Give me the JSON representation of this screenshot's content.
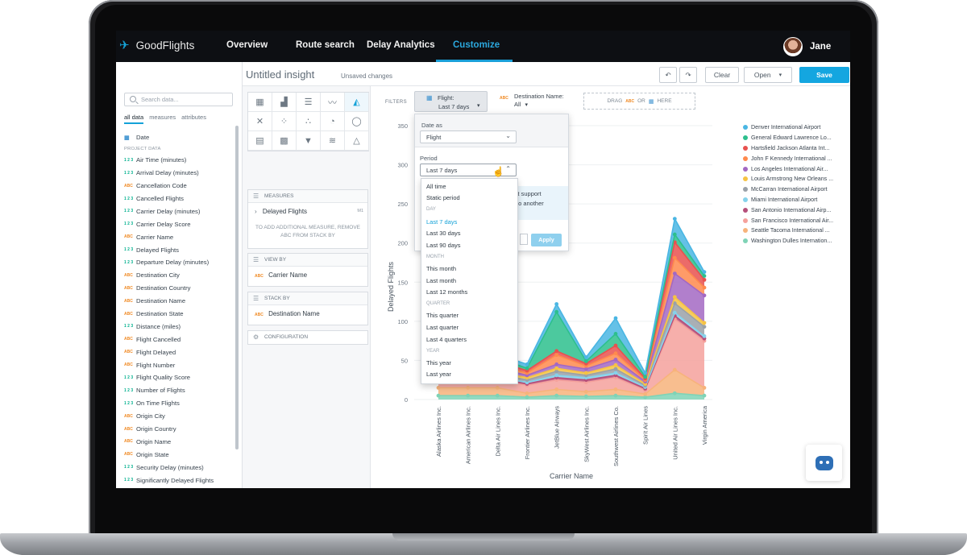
{
  "brand": {
    "name": "GoodFlights"
  },
  "nav": {
    "items": [
      {
        "label": "Overview"
      },
      {
        "label": "Route search"
      },
      {
        "label": "Delay Analytics"
      },
      {
        "label": "Customize",
        "active": true
      }
    ],
    "user": "Jane"
  },
  "left": {
    "search_placeholder": "Search data...",
    "tabs": [
      "all data",
      "measures",
      "attributes"
    ],
    "date_item": "Date",
    "section": "PROJECT DATA",
    "items": [
      {
        "tag": "1 2 3",
        "type": "num",
        "label": "Air Time (minutes)"
      },
      {
        "tag": "1 2 3",
        "type": "num",
        "label": "Arrival Delay (minutes)"
      },
      {
        "tag": "ABC",
        "type": "abc",
        "label": "Cancellation Code"
      },
      {
        "tag": "1 2 3",
        "type": "num",
        "label": "Cancelled Flights"
      },
      {
        "tag": "1 2 3",
        "type": "num",
        "label": "Carrier Delay (minutes)"
      },
      {
        "tag": "1 2 3",
        "type": "num",
        "label": "Carrier Delay Score"
      },
      {
        "tag": "ABC",
        "type": "abc",
        "label": "Carrier Name"
      },
      {
        "tag": "1 2 3",
        "type": "num",
        "label": "Delayed Flights"
      },
      {
        "tag": "1 2 3",
        "type": "num",
        "label": "Departure Delay (minutes)"
      },
      {
        "tag": "ABC",
        "type": "abc",
        "label": "Destination City"
      },
      {
        "tag": "ABC",
        "type": "abc",
        "label": "Destination Country"
      },
      {
        "tag": "ABC",
        "type": "abc",
        "label": "Destination Name"
      },
      {
        "tag": "ABC",
        "type": "abc",
        "label": "Destination State"
      },
      {
        "tag": "1 2 3",
        "type": "num",
        "label": "Distance (miles)"
      },
      {
        "tag": "ABC",
        "type": "abc",
        "label": "Flight Cancelled"
      },
      {
        "tag": "ABC",
        "type": "abc",
        "label": "Flight Delayed"
      },
      {
        "tag": "ABC",
        "type": "abc",
        "label": "Flight Number"
      },
      {
        "tag": "1 2 3",
        "type": "num",
        "label": "Flight Quality Score"
      },
      {
        "tag": "1 2 3",
        "type": "num",
        "label": "Number of Flights"
      },
      {
        "tag": "1 2 3",
        "type": "num",
        "label": "On Time Flights"
      },
      {
        "tag": "ABC",
        "type": "abc",
        "label": "Origin City"
      },
      {
        "tag": "ABC",
        "type": "abc",
        "label": "Origin Country"
      },
      {
        "tag": "ABC",
        "type": "abc",
        "label": "Origin Name"
      },
      {
        "tag": "ABC",
        "type": "abc",
        "label": "Origin State"
      },
      {
        "tag": "1 2 3",
        "type": "num",
        "label": "Security Delay (minutes)"
      },
      {
        "tag": "1 2 3",
        "type": "num",
        "label": "Significantly Delayed Flights"
      }
    ]
  },
  "header": {
    "title": "Untitled insight",
    "status": "Unsaved changes",
    "clear": "Clear",
    "open": "Open",
    "save": "Save"
  },
  "middle": {
    "measures_label": "MEASURES",
    "measure_item": "Delayed Flights",
    "measure_badge": "M1",
    "measure_note": "TO ADD ADDITIONAL MEASURE, REMOVE ABC FROM STACK BY",
    "viewby_label": "VIEW BY",
    "viewby_item": "Carrier Name",
    "stackby_label": "STACK BY",
    "stackby_item": "Destination Name",
    "config_label": "CONFIGURATION",
    "abc_tag": "ABC"
  },
  "filters": {
    "label": "FILTERS",
    "chip1_title": "Flight:",
    "chip1_value": "Last 7 days",
    "chip2_title": "Destination Name:",
    "chip2_value": "All",
    "drag_a": "DRAG",
    "drag_abc": "ABC",
    "drag_or": "OR",
    "drag_here": "HERE"
  },
  "dropdown": {
    "date_as_label": "Date as",
    "date_as_value": "Flight",
    "period_label": "Period",
    "period_value": "Last 7 days",
    "msg_line1": "'t support",
    "msg_line2": "to another",
    "apply": "Apply",
    "options": [
      {
        "label": "All time",
        "head": false
      },
      {
        "label": "Static period",
        "head": false
      },
      {
        "label": "DAY",
        "head": true
      },
      {
        "label": "Last 7 days",
        "head": false,
        "active": true
      },
      {
        "label": "Last 30 days",
        "head": false
      },
      {
        "label": "Last 90 days",
        "head": false
      },
      {
        "label": "MONTH",
        "head": true
      },
      {
        "label": "This month",
        "head": false
      },
      {
        "label": "Last month",
        "head": false
      },
      {
        "label": "Last 12 months",
        "head": false
      },
      {
        "label": "QUARTER",
        "head": true
      },
      {
        "label": "This quarter",
        "head": false
      },
      {
        "label": "Last quarter",
        "head": false
      },
      {
        "label": "Last 4 quarters",
        "head": false
      },
      {
        "label": "YEAR",
        "head": true
      },
      {
        "label": "This year",
        "head": false
      },
      {
        "label": "Last year",
        "head": false
      }
    ]
  },
  "chart_data": {
    "type": "area",
    "xlabel": "Carrier Name",
    "ylabel": "Delayed Flights",
    "ylim": [
      0,
      350
    ],
    "yticks": [
      0,
      50,
      100,
      150,
      200,
      250,
      300,
      350
    ],
    "categories": [
      "Alaska Airlines Inc.",
      "American Airlines Inc.",
      "Delta Air Lines Inc.",
      "Frontier Airlines Inc.",
      "JetBlue Airways",
      "SkyWest Airlines Inc.",
      "Southwest Airlines Co.",
      "Spirit Air Lines",
      "United Air Lines Inc.",
      "Virgin America"
    ],
    "series": [
      {
        "name": "Washington Dulles Internation...",
        "color": "#7fd3b6",
        "values": [
          5,
          5,
          5,
          3,
          5,
          4,
          5,
          3,
          8,
          5
        ]
      },
      {
        "name": "Seattle Tacoma International ...",
        "color": "#f7b37b",
        "values": [
          10,
          10,
          10,
          5,
          8,
          6,
          8,
          4,
          30,
          10
        ]
      },
      {
        "name": "San Francisco International Air...",
        "color": "#f5a19c",
        "values": [
          10,
          10,
          10,
          10,
          12,
          12,
          15,
          5,
          65,
          60
        ]
      },
      {
        "name": "San Antonio International Airp...",
        "color": "#b54f7a",
        "values": [
          2,
          2,
          2,
          2,
          3,
          3,
          3,
          2,
          4,
          3
        ]
      },
      {
        "name": "Miami International Airport",
        "color": "#85d2eb",
        "values": [
          2,
          2,
          2,
          2,
          3,
          3,
          3,
          2,
          4,
          3
        ]
      },
      {
        "name": "McCarran International Airport",
        "color": "#9aa1a8",
        "values": [
          3,
          3,
          3,
          3,
          5,
          3,
          5,
          2,
          12,
          12
        ]
      },
      {
        "name": "Louis Armstrong New Orleans ...",
        "color": "#f6c343",
        "values": [
          3,
          3,
          3,
          3,
          4,
          3,
          5,
          2,
          8,
          5
        ]
      },
      {
        "name": "Los Angeles International Air...",
        "color": "#a368c3",
        "values": [
          5,
          5,
          5,
          3,
          5,
          5,
          7,
          3,
          30,
          35
        ]
      },
      {
        "name": "John F Kennedy International ...",
        "color": "#ff8a4d",
        "values": [
          3,
          3,
          3,
          3,
          12,
          4,
          8,
          2,
          20,
          10
        ]
      },
      {
        "name": "Hartsfield Jackson Atlanta Int...",
        "color": "#e8514f",
        "values": [
          5,
          5,
          5,
          3,
          5,
          3,
          10,
          2,
          20,
          10
        ]
      },
      {
        "name": "General Edward Lawrence Lo...",
        "color": "#2dbf8d",
        "values": [
          5,
          5,
          5,
          3,
          50,
          3,
          15,
          2,
          10,
          5
        ]
      },
      {
        "name": "Denver International Airport",
        "color": "#4ab6e3",
        "values": [
          5,
          5,
          5,
          5,
          10,
          5,
          20,
          5,
          20,
          5
        ]
      }
    ]
  }
}
